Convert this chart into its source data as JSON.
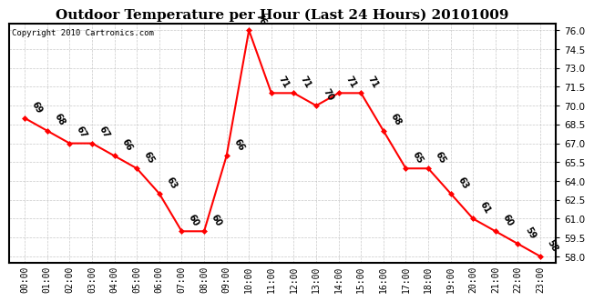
{
  "title": "Outdoor Temperature per Hour (Last 24 Hours) 20101009",
  "copyright_text": "Copyright 2010 Cartronics.com",
  "hours": [
    "00:00",
    "01:00",
    "02:00",
    "03:00",
    "04:00",
    "05:00",
    "06:00",
    "07:00",
    "08:00",
    "09:00",
    "10:00",
    "11:00",
    "12:00",
    "13:00",
    "14:00",
    "15:00",
    "16:00",
    "17:00",
    "18:00",
    "19:00",
    "20:00",
    "21:00",
    "22:00",
    "23:00"
  ],
  "temps": [
    69,
    68,
    67,
    67,
    66,
    65,
    63,
    60,
    60,
    66,
    76,
    71,
    71,
    70,
    71,
    71,
    68,
    65,
    65,
    63,
    61,
    60,
    59,
    58
  ],
  "ylim_min": 57.5,
  "ylim_max": 76.5,
  "yticks": [
    58.0,
    59.5,
    61.0,
    62.5,
    64.0,
    65.5,
    67.0,
    68.5,
    70.0,
    71.5,
    73.0,
    74.5,
    76.0
  ],
  "line_color": "red",
  "marker": "D",
  "marker_color": "red",
  "marker_size": 3,
  "bg_color": "#ffffff",
  "grid_color": "#bbbbbb",
  "title_fontsize": 11,
  "label_fontsize": 7,
  "copyright_fontsize": 6.5,
  "tick_fontsize": 7,
  "ytick_fontsize": 7.5
}
